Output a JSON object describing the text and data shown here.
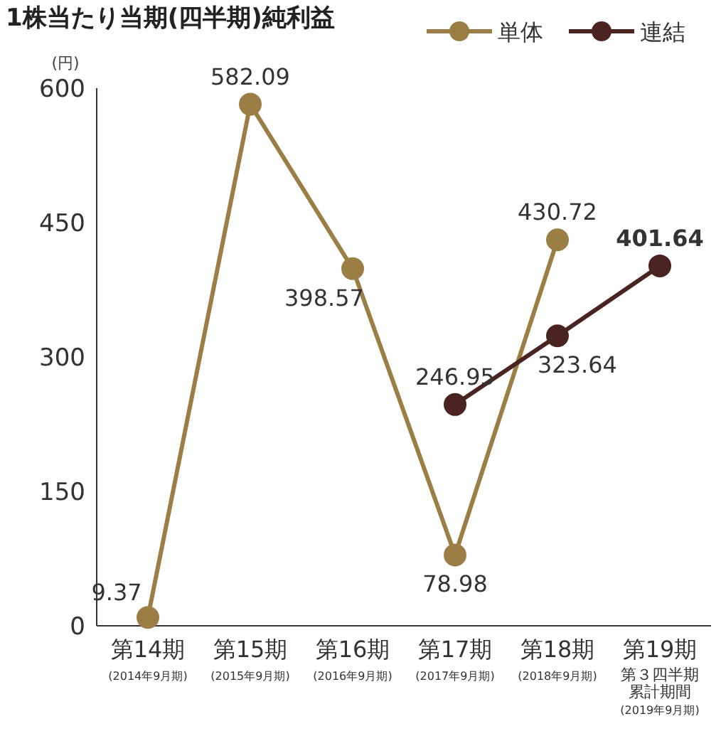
{
  "chart_data": {
    "type": "line",
    "title": "1株当たり当期(四半期)純利益",
    "ylabel": "(円)",
    "categories": [
      "第14期(2014年9月期)",
      "第15期(2015年9月期)",
      "第16期(2016年9月期)",
      "第17期(2017年9月期)",
      "第18期(2018年9月期)",
      "第19期第３四半期累計期間(2019年9月期)"
    ],
    "series": [
      {
        "name": "単体",
        "color": "#9b7e45",
        "values": [
          9.37,
          582.09,
          398.57,
          78.98,
          430.72,
          null
        ]
      },
      {
        "name": "連結",
        "color": "#4a2420",
        "values": [
          null,
          null,
          null,
          246.95,
          323.64,
          401.64
        ]
      }
    ],
    "ylim": [
      0,
      600
    ],
    "yticks": [
      0,
      150,
      300,
      450,
      600
    ],
    "marker": "circle",
    "line_style": "solid",
    "data_labels": true,
    "legend": "top right",
    "grid": false
  }
}
